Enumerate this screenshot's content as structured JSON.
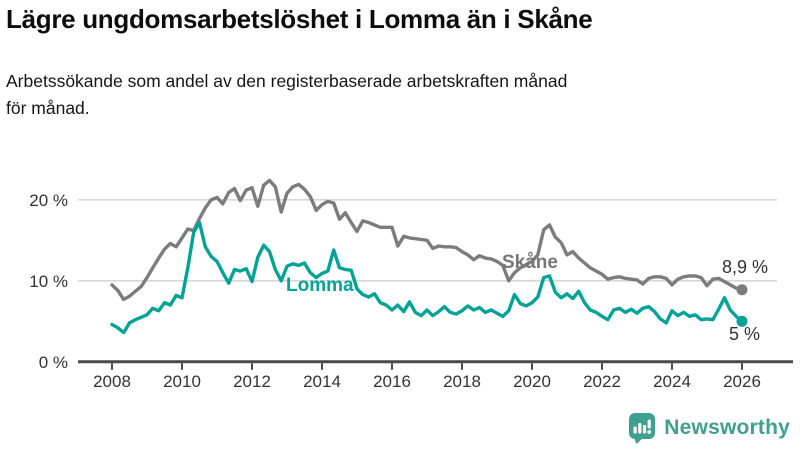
{
  "header": {
    "title": "Lägre ungdomsarbetslöshet i Lomma än i Skåne",
    "subtitle_line1": "Arbetssökande som andel av den registerbaserade arbetskraften månad",
    "subtitle_line2": "för månad."
  },
  "footer": {
    "brand": "Newsworthy",
    "brand_color": "#3fa08f",
    "logo_icon": "newsworthy-bar-chart-bubble-icon"
  },
  "chart_data": {
    "type": "line",
    "title": "Lägre ungdomsarbetslöshet i Lomma än i Skåne",
    "subtitle": "Arbetssökande som andel av den registerbaserade arbetskraften månad för månad.",
    "unit": "%",
    "x_start_year": 2008,
    "points_per_year": 6,
    "xlim": [
      2008,
      2026.4
    ],
    "ylim": [
      0,
      24
    ],
    "grid": "horizontal",
    "grid_color": "#d8d8d8",
    "axis_color": "#4a4a4a",
    "x_ticks": [
      "2008",
      "2010",
      "2012",
      "2014",
      "2016",
      "2018",
      "2020",
      "2022",
      "2024",
      "2026"
    ],
    "y_ticks": [
      {
        "v": 0,
        "label": "0 %"
      },
      {
        "v": 10,
        "label": "10 %"
      },
      {
        "v": 20,
        "label": "20 %"
      }
    ],
    "series": [
      {
        "name": "Skåne",
        "color": "#7c7c7c",
        "end_label": "8,9 %",
        "end_value": 8.9,
        "values": [
          9.5,
          8.8,
          7.7,
          8.1,
          8.7,
          9.3,
          10.4,
          11.6,
          12.8,
          13.9,
          14.6,
          14.2,
          15.3,
          16.4,
          16.2,
          17.7,
          19.0,
          20.0,
          20.3,
          19.5,
          20.9,
          21.4,
          19.9,
          21.2,
          21.5,
          19.2,
          21.8,
          22.4,
          21.6,
          18.5,
          20.8,
          21.6,
          21.9,
          21.3,
          20.4,
          18.7,
          19.4,
          19.8,
          19.6,
          17.6,
          18.4,
          17.2,
          16.1,
          17.4,
          17.2,
          16.9,
          16.6,
          16.6,
          16.6,
          14.3,
          15.5,
          15.3,
          15.2,
          15.1,
          15.0,
          14.0,
          14.3,
          14.2,
          14.2,
          14.1,
          13.6,
          13.2,
          12.6,
          13.1,
          12.8,
          12.7,
          12.4,
          11.9,
          10.0,
          11.0,
          11.6,
          12.0,
          12.4,
          13.2,
          16.3,
          16.9,
          15.4,
          14.7,
          13.2,
          13.6,
          12.8,
          12.2,
          11.6,
          11.2,
          10.8,
          10.2,
          10.4,
          10.5,
          10.3,
          10.2,
          10.1,
          9.6,
          10.3,
          10.5,
          10.5,
          10.3,
          9.5,
          10.2,
          10.5,
          10.6,
          10.6,
          10.4,
          9.4,
          10.2,
          10.3,
          9.9,
          9.5,
          9.1,
          8.9
        ]
      },
      {
        "name": "Lomma",
        "color": "#00a396",
        "end_label": "5 %",
        "end_value": 5,
        "values": [
          4.6,
          4.2,
          3.6,
          4.8,
          5.2,
          5.5,
          5.8,
          6.6,
          6.3,
          7.3,
          7.0,
          8.2,
          7.9,
          11.6,
          16.0,
          17.2,
          14.2,
          13.0,
          12.4,
          11.0,
          9.7,
          11.4,
          11.2,
          11.5,
          9.9,
          12.9,
          14.4,
          13.6,
          11.4,
          10.0,
          11.8,
          12.1,
          11.9,
          12.2,
          11.0,
          10.4,
          10.9,
          11.2,
          13.8,
          11.6,
          11.4,
          11.3,
          9.0,
          8.3,
          8.0,
          8.4,
          7.3,
          7.0,
          6.4,
          7.0,
          6.2,
          7.4,
          6.1,
          5.7,
          6.4,
          5.7,
          6.2,
          6.8,
          6.1,
          5.9,
          6.3,
          6.9,
          6.4,
          6.7,
          6.1,
          6.4,
          6.0,
          5.6,
          6.3,
          8.3,
          7.2,
          6.9,
          7.3,
          8.0,
          10.4,
          10.6,
          8.6,
          7.9,
          8.4,
          7.8,
          8.7,
          7.3,
          6.4,
          6.1,
          5.6,
          5.2,
          6.4,
          6.6,
          6.1,
          6.5,
          6.0,
          6.6,
          6.8,
          6.2,
          5.3,
          4.8,
          6.3,
          5.7,
          6.1,
          5.6,
          5.8,
          5.2,
          5.3,
          5.2,
          6.5,
          7.9,
          6.4,
          5.6,
          5.0
        ]
      }
    ]
  }
}
